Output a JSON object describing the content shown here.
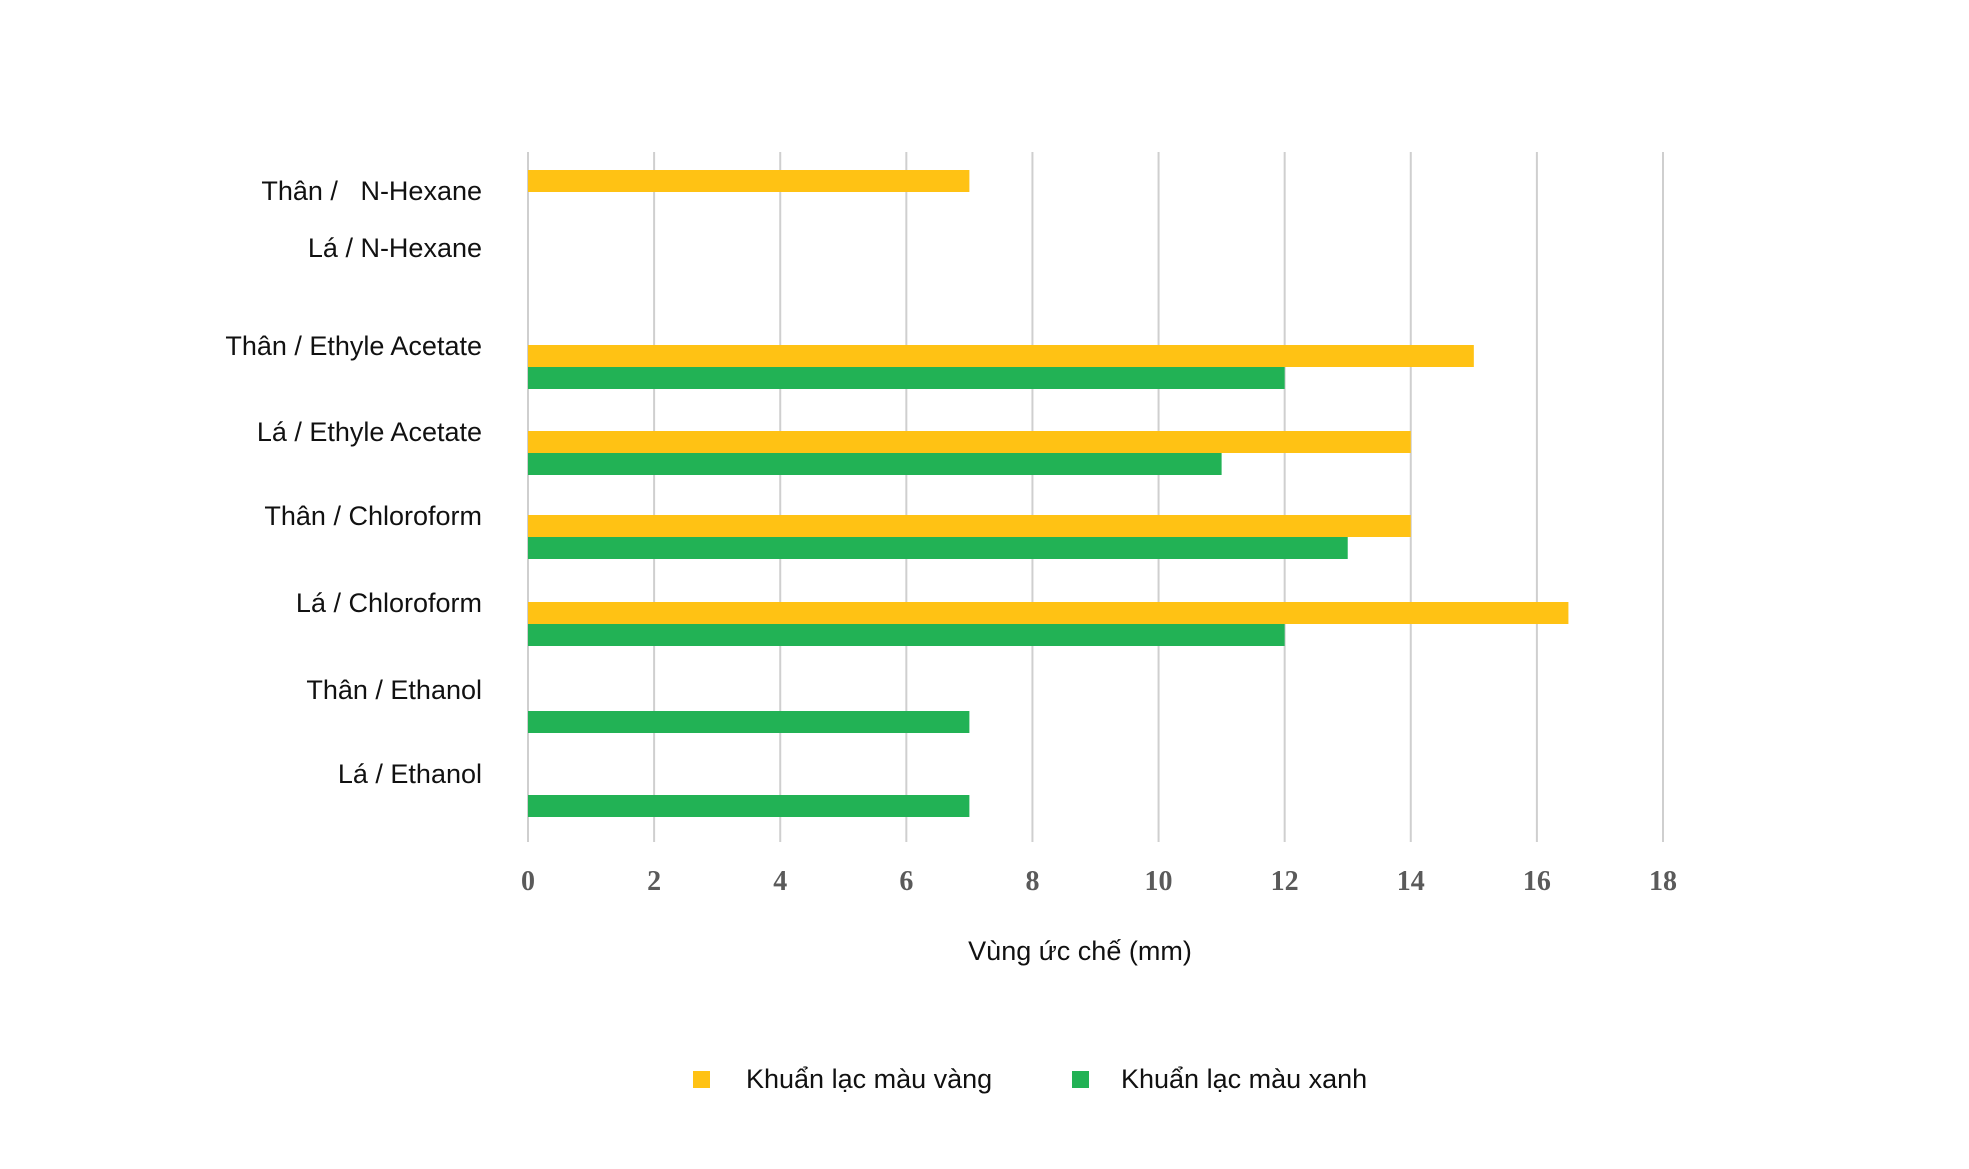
{
  "chart_data": {
    "type": "bar",
    "orientation": "horizontal",
    "categories": [
      "Thân /   N-Hexane",
      "Lá / N-Hexane",
      "Thân / Ethyle Acetate",
      "Lá / Ethyle Acetate",
      "Thân / Chloroform",
      "Lá / Chloroform",
      "Thân / Ethanol",
      "Lá / Ethanol"
    ],
    "series": [
      {
        "name": "Khuẩn lạc màu vàng",
        "color": "#FFC214",
        "values": [
          7,
          0,
          15,
          14,
          14,
          16.5,
          0,
          0
        ]
      },
      {
        "name": "Khuẩn lạc màu xanh",
        "color": "#22B255",
        "values": [
          0,
          0,
          12,
          11,
          13,
          12,
          7,
          7
        ]
      }
    ],
    "xlabel": "Vùng ức chế (mm)",
    "ylabel": "",
    "title": "",
    "xlim": [
      0,
      18
    ],
    "xticks": [
      "0",
      "2",
      "4",
      "6",
      "8",
      "10",
      "12",
      "14",
      "16",
      "18"
    ],
    "grid": "vertical",
    "legend_position": "bottom"
  }
}
